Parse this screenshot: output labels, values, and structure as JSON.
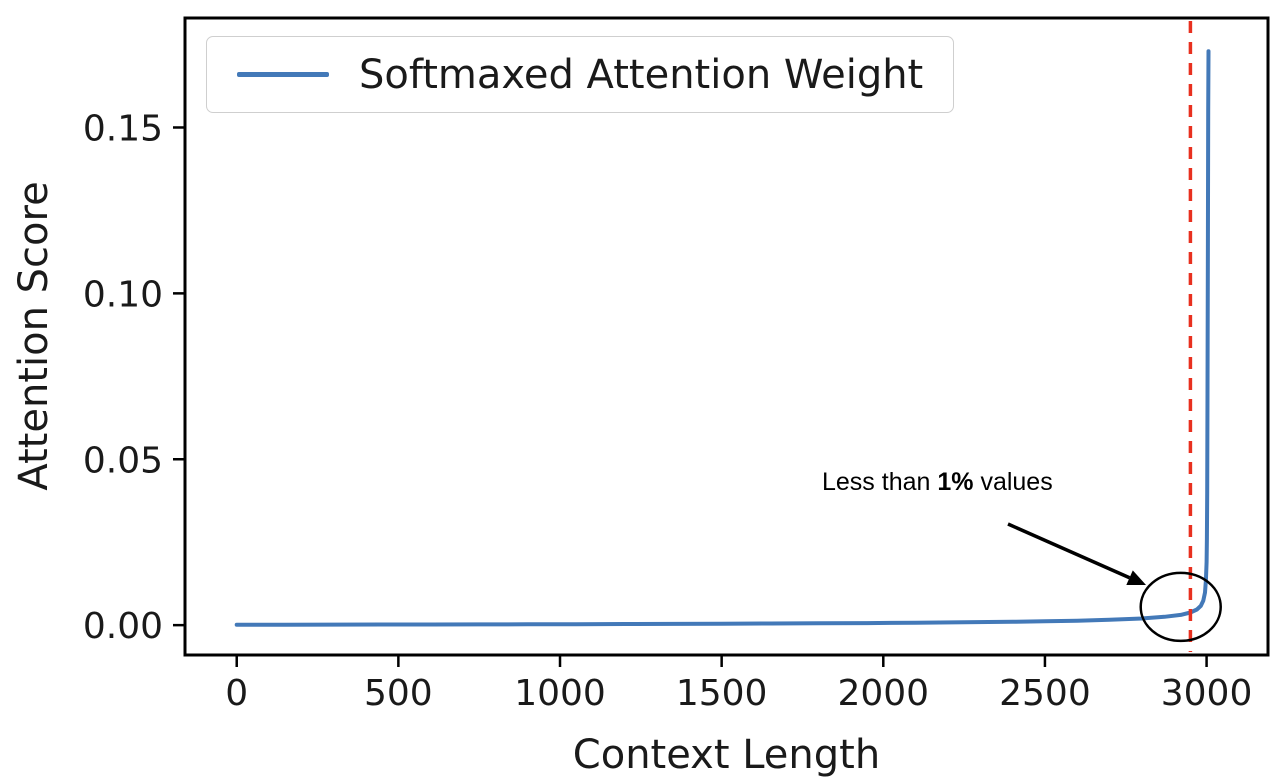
{
  "chart_data": {
    "type": "line",
    "title": "",
    "xlabel": "Context Length",
    "ylabel": "Attention Score",
    "legend": [
      "Softmaxed Attention Weight"
    ],
    "legend_position": "upper left",
    "grid": false,
    "xlim": [
      -160,
      3190
    ],
    "ylim": [
      -0.009,
      0.183
    ],
    "xticks": [
      0,
      500,
      1000,
      1500,
      2000,
      2500,
      3000
    ],
    "yticks": [
      0,
      0.05,
      0.1,
      0.15
    ],
    "ytick_labels": [
      "0.00",
      "0.05",
      "0.10",
      "0.15"
    ],
    "series": [
      {
        "name": "Softmaxed Attention Weight",
        "color": "#4379b8",
        "points": [
          [
            0,
            0.00012
          ],
          [
            150,
            0.00014
          ],
          [
            300,
            0.00016
          ],
          [
            450,
            0.00018
          ],
          [
            600,
            0.0002
          ],
          [
            750,
            0.00023
          ],
          [
            900,
            0.00026
          ],
          [
            1050,
            0.00029
          ],
          [
            1200,
            0.00033
          ],
          [
            1350,
            0.00037
          ],
          [
            1500,
            0.00042
          ],
          [
            1650,
            0.00048
          ],
          [
            1800,
            0.00055
          ],
          [
            1950,
            0.00063
          ],
          [
            2100,
            0.00073
          ],
          [
            2250,
            0.00085
          ],
          [
            2400,
            0.001
          ],
          [
            2500,
            0.00115
          ],
          [
            2600,
            0.00135
          ],
          [
            2700,
            0.0016
          ],
          [
            2800,
            0.002
          ],
          [
            2870,
            0.0025
          ],
          [
            2920,
            0.0031
          ],
          [
            2950,
            0.0038
          ],
          [
            2970,
            0.0047
          ],
          [
            2982,
            0.0058
          ],
          [
            2990,
            0.0074
          ],
          [
            2995,
            0.0098
          ],
          [
            2998,
            0.0135
          ],
          [
            3000,
            0.019
          ],
          [
            3001,
            0.026
          ],
          [
            3002,
            0.04
          ],
          [
            3003,
            0.07
          ],
          [
            3004,
            0.115
          ],
          [
            3005,
            0.155
          ],
          [
            3006,
            0.173
          ]
        ]
      }
    ],
    "vline": {
      "x": 2950,
      "color": "#e8301f",
      "style": "dashed"
    },
    "annotation": {
      "prefix": "Less than ",
      "bold": "1%",
      "suffix": " values",
      "circle_center": {
        "x": 2920,
        "y": 0.0055
      }
    },
    "axis_color": "#000000",
    "text_color": "#1a1a1a"
  }
}
